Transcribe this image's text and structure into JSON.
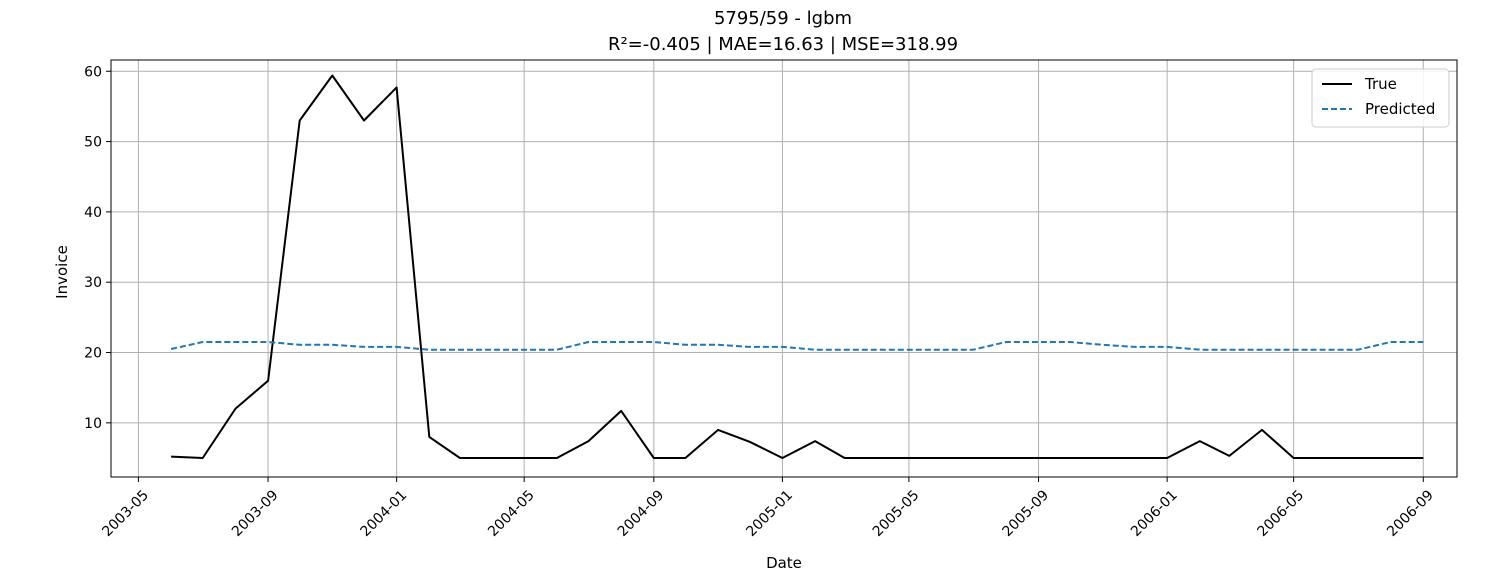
{
  "chart_data": {
    "type": "line",
    "title": "5795/59 - lgbm",
    "subtitle": "R²=-0.405 | MAE=16.63 | MSE=318.99",
    "xlabel": "Date",
    "ylabel": "Invoice",
    "xlim": [
      "2003-04-05",
      "2006-10-03"
    ],
    "ylim": [
      2.3,
      61.6
    ],
    "grid": true,
    "legend_position": "top-right",
    "x_ticks": [
      "2003-05",
      "2003-09",
      "2004-01",
      "2004-05",
      "2004-09",
      "2005-01",
      "2005-05",
      "2005-09",
      "2006-01",
      "2006-05",
      "2006-09"
    ],
    "y_ticks": [
      10,
      20,
      30,
      40,
      50,
      60
    ],
    "x": [
      "2003-06-01",
      "2003-07-01",
      "2003-08-01",
      "2003-09-01",
      "2003-10-01",
      "2003-11-01",
      "2003-12-01",
      "2004-01-01",
      "2004-02-01",
      "2004-03-01",
      "2004-04-01",
      "2004-05-01",
      "2004-06-01",
      "2004-07-01",
      "2004-08-01",
      "2004-09-01",
      "2004-10-01",
      "2004-11-01",
      "2004-12-01",
      "2005-01-01",
      "2005-02-01",
      "2005-03-01",
      "2005-04-01",
      "2005-05-01",
      "2005-06-01",
      "2005-07-01",
      "2005-08-01",
      "2005-09-01",
      "2005-10-01",
      "2005-11-01",
      "2005-12-01",
      "2006-01-01",
      "2006-02-01",
      "2006-03-01",
      "2006-04-01",
      "2006-05-01",
      "2006-06-01",
      "2006-07-01",
      "2006-08-01",
      "2006-09-01"
    ],
    "series": [
      {
        "name": "True",
        "color": "#000000",
        "dash": "solid",
        "values": [
          5.2,
          5.0,
          12.0,
          16.0,
          53.0,
          59.4,
          53.0,
          57.7,
          8.0,
          5.0,
          5.0,
          5.0,
          5.0,
          7.4,
          11.7,
          5.0,
          5.0,
          9.0,
          7.3,
          5.0,
          7.4,
          5.0,
          5.0,
          5.0,
          5.0,
          5.0,
          5.0,
          5.0,
          5.0,
          5.0,
          5.0,
          5.0,
          7.4,
          5.3,
          9.0,
          5.0,
          5.0,
          5.0,
          5.0,
          5.0
        ]
      },
      {
        "name": "Predicted",
        "color": "#1f77b4",
        "dash": "dashed",
        "values": [
          20.5,
          21.5,
          21.5,
          21.5,
          21.1,
          21.1,
          20.8,
          20.8,
          20.4,
          20.4,
          20.4,
          20.4,
          20.4,
          21.5,
          21.5,
          21.5,
          21.1,
          21.1,
          20.8,
          20.8,
          20.4,
          20.4,
          20.4,
          20.4,
          20.4,
          20.4,
          21.5,
          21.5,
          21.5,
          21.1,
          20.8,
          20.8,
          20.4,
          20.4,
          20.4,
          20.4,
          20.4,
          20.4,
          21.5,
          21.5
        ]
      }
    ]
  }
}
